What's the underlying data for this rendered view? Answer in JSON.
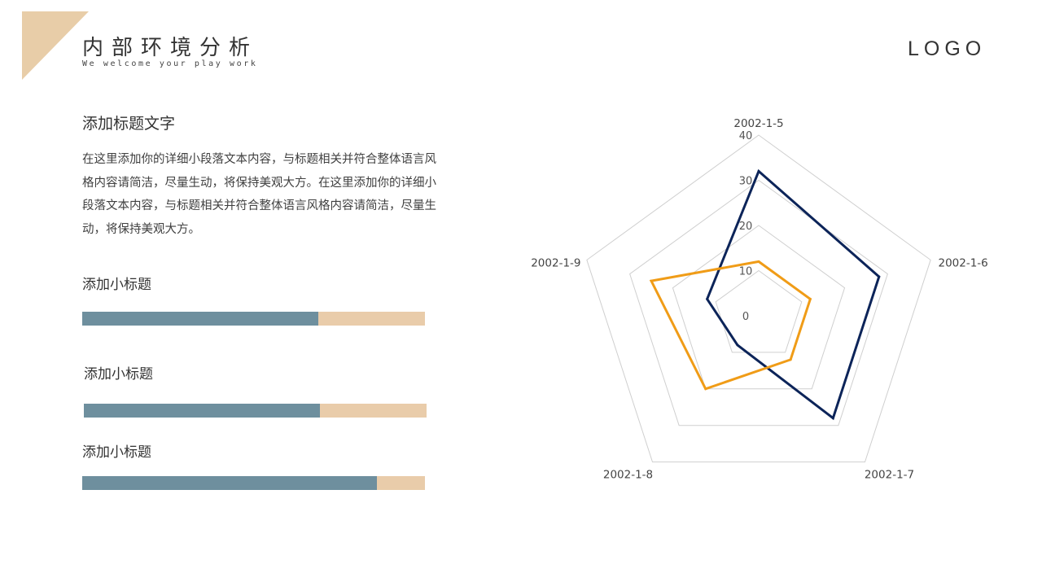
{
  "header": {
    "title": "内部环境分析",
    "subtitle": "We welcome your play  work",
    "logo": "LOGO"
  },
  "section": {
    "title": "添加标题文字",
    "body": "在这里添加你的详细小段落文本内容，与标题相关并符合整体语言风格内容请简洁，尽量生动，将保持美观大方。在这里添加你的详细小段落文本内容，与标题相关并符合整体语言风格内容请简洁，尽量生动，将保持美观大方。"
  },
  "progress": [
    {
      "label": "添加小标题",
      "value": 0.69
    },
    {
      "label": "添加小标题",
      "value": 0.69
    },
    {
      "label": "添加小标题",
      "value": 0.86
    }
  ],
  "colors": {
    "accent": "#e8cda8",
    "bar_fill": "#6e8f9e",
    "bar_track": "#e9ccaa",
    "series_1": "#0c2459",
    "series_2": "#f09c17",
    "grid": "#cfcfcf"
  },
  "chart_data": {
    "type": "radar",
    "categories": [
      "2002-1-5",
      "2002-1-6",
      "2002-1-7",
      "2002-1-8",
      "2002-1-9"
    ],
    "axis_range": [
      0,
      40
    ],
    "ticks": [
      0,
      10,
      20,
      30,
      40
    ],
    "grid": true,
    "series": [
      {
        "values": [
          32,
          28,
          28,
          8,
          12
        ]
      },
      {
        "values": [
          12,
          12,
          12,
          20,
          25
        ]
      }
    ]
  }
}
